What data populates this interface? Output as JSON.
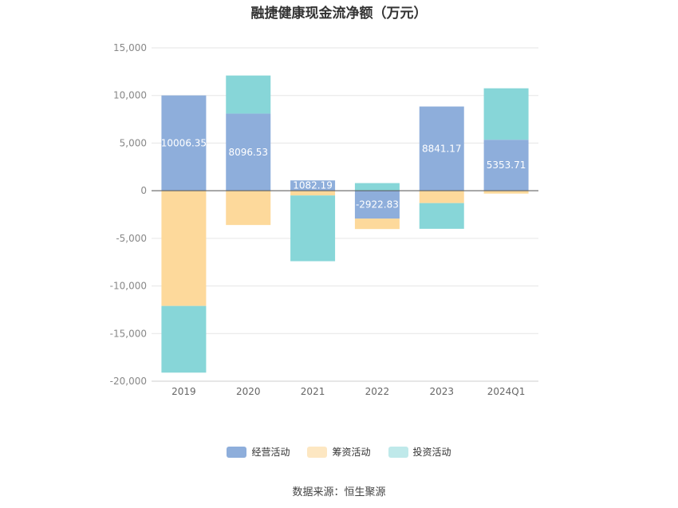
{
  "title": "融捷健康现金流净额（万元）",
  "source": "数据来源：恒生聚源",
  "chart_data": {
    "type": "bar",
    "stacked": true,
    "categories": [
      "2019",
      "2020",
      "2021",
      "2022",
      "2023",
      "2024Q1"
    ],
    "series": [
      {
        "name": "经营活动",
        "color": "#8eaedb",
        "values": [
          10006.35,
          8096.53,
          1082.19,
          -2922.83,
          8841.17,
          5353.71
        ],
        "labels": [
          "10006.35",
          "8096.53",
          "1082.19",
          "-2922.83",
          "8841.17",
          "5353.71"
        ]
      },
      {
        "name": "筹资活动",
        "color": "#fdd99b",
        "values": [
          -12100,
          -3600,
          -500,
          -1100,
          -1300,
          -300
        ]
      },
      {
        "name": "投资活动",
        "color": "#87d6d8",
        "values": [
          -7000,
          4000,
          -6900,
          800,
          -2700,
          5400
        ]
      }
    ],
    "yticks": [
      "15,000",
      "10,000",
      "5,000",
      "0",
      "-5,000",
      "-10,000",
      "-15,000",
      "-20,000"
    ],
    "ylim": [
      -20000,
      15000
    ],
    "grid": true,
    "legend_position": "bottom"
  },
  "legend_colors": {
    "经营活动": "#8eaedb",
    "筹资活动": "#fde7c2",
    "投资活动": "#bfe9ea"
  }
}
